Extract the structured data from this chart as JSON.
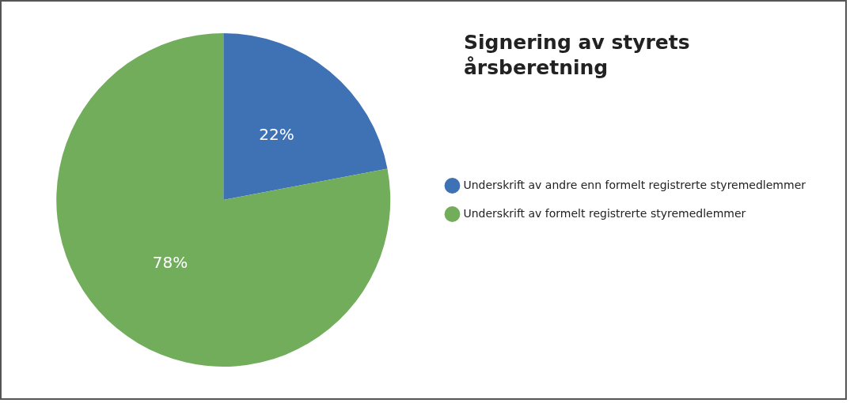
{
  "chart_data": {
    "type": "pie",
    "title": "Signering av styrets årsberetning",
    "categories": [
      "Underskrift av andre enn formelt registrerte styremedlemmer",
      "Underskrift av formelt registrerte styremedlemmer"
    ],
    "values": [
      22,
      78
    ],
    "colors": [
      "#3f72b5",
      "#72ad5c"
    ],
    "value_labels": [
      "22%",
      "78%"
    ],
    "legend": "right"
  }
}
